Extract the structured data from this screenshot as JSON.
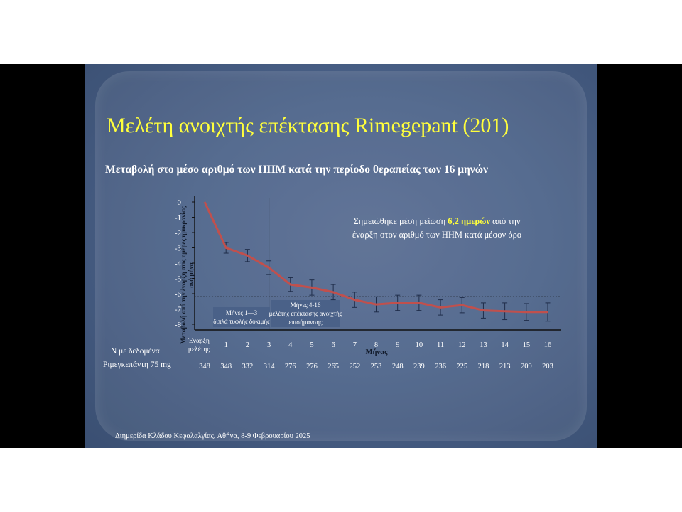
{
  "slide": {
    "title": "Μελέτη ανοιχτής επέκτασης Rimegepant (201)",
    "subtitle": "Μεταβολή στο μέσο αριθμό των ΗΗΜ κατά την περίοδο θεραπείας των 16 μηνών",
    "note_line1_pre": "Σημειώθηκε μέση μείωση ",
    "note_highlight": "6,2 ημερών",
    "note_line1_post": " από την",
    "note_line2": "έναρξη στον αριθμό των ΗΗΜ κατά μέσον όρο",
    "ylabel": "Μεταβολή από την έναρξη στις ημέρες ημικρανίας ανά μήνα",
    "n_label": "Ν με δεδομένα",
    "drug_label": "Ριμεγκεπάντη 75 mg",
    "footer": "Διημερίδα Κλάδου Κεφαλαλγίας, Αθήνα, 8-9 Φεβρουαρίου 2025"
  },
  "chart_data": {
    "type": "line",
    "x_categories": [
      "Έναρξη μελέτης",
      "1",
      "2",
      "3",
      "4",
      "5",
      "6",
      "7",
      "8",
      "9",
      "10",
      "11",
      "12",
      "13",
      "14",
      "15",
      "16"
    ],
    "xlabel": "Μήνας",
    "ylabel": "Μεταβολή από την έναρξη στις ημέρες ημικρανίας ανά μήνα",
    "ylim": [
      -8,
      0
    ],
    "yticks": [
      0,
      -1,
      -2,
      -3,
      -4,
      -5,
      -6,
      -7,
      -8
    ],
    "series": [
      {
        "values": [
          0,
          -3.0,
          -3.5,
          -4.3,
          -5.4,
          -5.6,
          -5.9,
          -6.4,
          -6.7,
          -6.6,
          -6.6,
          -6.9,
          -6.75,
          -7.1,
          -7.15,
          -7.2,
          -7.2
        ],
        "error": [
          null,
          0.35,
          0.4,
          0.45,
          0.45,
          0.5,
          0.5,
          0.5,
          0.5,
          0.5,
          0.5,
          0.5,
          0.5,
          0.5,
          0.55,
          0.55,
          0.6
        ],
        "color": "#c0504d"
      }
    ],
    "reference_line": {
      "y": -6.2,
      "style": "dotted"
    },
    "phase_divider_x": "3",
    "phases": [
      {
        "label": "Μήνες 1—3 διπλά τυφλής δοκιμής"
      },
      {
        "label": "Μήνες 4-16 μελέτης επέκτασης ανοιχτής επισήμανσης"
      }
    ],
    "n_with_data": [
      "348",
      "348",
      "332",
      "314",
      "276",
      "276",
      "265",
      "252",
      "253",
      "248",
      "239",
      "236",
      "225",
      "218",
      "213",
      "209",
      "203"
    ],
    "grid": false
  }
}
